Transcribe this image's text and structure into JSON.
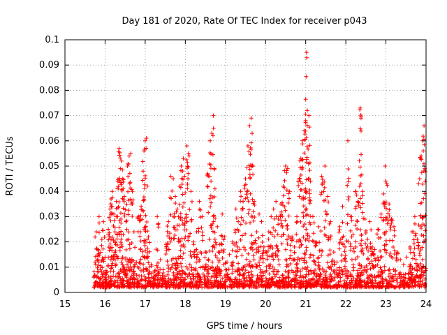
{
  "chart_data": {
    "type": "scatter",
    "title": "Day 181 of 2020, Rate Of TEC Index for receiver p043",
    "xlabel": "GPS time / hours",
    "ylabel": "ROTI / TECUs",
    "xlim": [
      15,
      24
    ],
    "ylim": [
      0,
      0.1
    ],
    "xticks": [
      "15",
      "16",
      "17",
      "18",
      "19",
      "20",
      "21",
      "22",
      "23",
      "24"
    ],
    "yticks": [
      "0",
      "0.01",
      "0.02",
      "0.03",
      "0.04",
      "0.05",
      "0.06",
      "0.07",
      "0.08",
      "0.09",
      "0.1"
    ],
    "grid": true,
    "marker": "+",
    "series": [
      {
        "name": "ROTI",
        "color": "#ff0000",
        "points": [
          [
            15.72,
            0.006
          ],
          [
            15.75,
            0.012
          ],
          [
            15.78,
            0.024
          ],
          [
            15.82,
            0.017
          ],
          [
            15.85,
            0.03
          ],
          [
            15.88,
            0.009
          ],
          [
            15.92,
            0.021
          ],
          [
            15.96,
            0.028
          ],
          [
            16.0,
            0.014
          ],
          [
            16.04,
            0.008
          ],
          [
            16.08,
            0.025
          ],
          [
            16.12,
            0.033
          ],
          [
            16.15,
            0.037
          ],
          [
            16.18,
            0.04
          ],
          [
            16.22,
            0.031
          ],
          [
            16.25,
            0.02
          ],
          [
            16.28,
            0.036
          ],
          [
            16.32,
            0.044
          ],
          [
            16.35,
            0.057
          ],
          [
            16.38,
            0.049
          ],
          [
            16.41,
            0.052
          ],
          [
            16.44,
            0.045
          ],
          [
            16.48,
            0.038
          ],
          [
            16.52,
            0.028
          ],
          [
            16.56,
            0.05
          ],
          [
            16.6,
            0.054
          ],
          [
            16.64,
            0.055
          ],
          [
            16.68,
            0.04
          ],
          [
            16.72,
            0.024
          ],
          [
            16.78,
            0.012
          ],
          [
            16.84,
            0.03
          ],
          [
            16.9,
            0.034
          ],
          [
            16.95,
            0.048
          ],
          [
            16.97,
            0.056
          ],
          [
            17.0,
            0.06
          ],
          [
            17.03,
            0.061
          ],
          [
            17.08,
            0.022
          ],
          [
            17.15,
            0.011
          ],
          [
            17.22,
            0.008
          ],
          [
            17.3,
            0.03
          ],
          [
            17.38,
            0.013
          ],
          [
            17.45,
            0.009
          ],
          [
            17.52,
            0.019
          ],
          [
            17.58,
            0.028
          ],
          [
            17.64,
            0.046
          ],
          [
            17.7,
            0.045
          ],
          [
            17.75,
            0.038
          ],
          [
            17.8,
            0.033
          ],
          [
            17.86,
            0.042
          ],
          [
            17.9,
            0.05
          ],
          [
            17.95,
            0.053
          ],
          [
            17.98,
            0.046
          ],
          [
            18.04,
            0.058
          ],
          [
            18.08,
            0.055
          ],
          [
            18.14,
            0.04
          ],
          [
            18.2,
            0.02
          ],
          [
            18.28,
            0.024
          ],
          [
            18.35,
            0.036
          ],
          [
            18.42,
            0.03
          ],
          [
            18.5,
            0.016
          ],
          [
            18.56,
            0.047
          ],
          [
            18.62,
            0.06
          ],
          [
            18.66,
            0.063
          ],
          [
            18.7,
            0.07
          ],
          [
            18.74,
            0.041
          ],
          [
            18.8,
            0.026
          ],
          [
            18.86,
            0.019
          ],
          [
            18.92,
            0.031
          ],
          [
            18.98,
            0.022
          ],
          [
            19.04,
            0.012
          ],
          [
            19.1,
            0.015
          ],
          [
            19.18,
            0.02
          ],
          [
            19.26,
            0.033
          ],
          [
            19.32,
            0.028
          ],
          [
            19.38,
            0.04
          ],
          [
            19.44,
            0.036
          ],
          [
            19.5,
            0.045
          ],
          [
            19.56,
            0.058
          ],
          [
            19.6,
            0.066
          ],
          [
            19.64,
            0.069
          ],
          [
            19.68,
            0.05
          ],
          [
            19.72,
            0.036
          ],
          [
            19.78,
            0.024
          ],
          [
            19.84,
            0.031
          ],
          [
            19.9,
            0.028
          ],
          [
            19.96,
            0.018
          ],
          [
            20.02,
            0.016
          ],
          [
            20.08,
            0.024
          ],
          [
            20.14,
            0.03
          ],
          [
            20.2,
            0.033
          ],
          [
            20.26,
            0.036
          ],
          [
            20.32,
            0.029
          ],
          [
            20.38,
            0.035
          ],
          [
            20.44,
            0.042
          ],
          [
            20.5,
            0.05
          ],
          [
            20.55,
            0.049
          ],
          [
            20.6,
            0.04
          ],
          [
            20.66,
            0.022
          ],
          [
            20.72,
            0.018
          ],
          [
            20.78,
            0.03
          ],
          [
            20.84,
            0.045
          ],
          [
            20.88,
            0.053
          ],
          [
            20.92,
            0.06
          ],
          [
            20.96,
            0.064
          ],
          [
            21.0,
            0.068
          ],
          [
            21.02,
            0.095
          ],
          [
            21.04,
            0.072
          ],
          [
            21.08,
            0.07
          ],
          [
            21.12,
            0.044
          ],
          [
            21.18,
            0.03
          ],
          [
            21.25,
            0.02
          ],
          [
            21.32,
            0.026
          ],
          [
            21.4,
            0.046
          ],
          [
            21.48,
            0.05
          ],
          [
            21.55,
            0.038
          ],
          [
            21.62,
            0.028
          ],
          [
            21.7,
            0.016
          ],
          [
            21.78,
            0.012
          ],
          [
            21.85,
            0.026
          ],
          [
            21.92,
            0.034
          ],
          [
            21.98,
            0.018
          ],
          [
            22.05,
            0.06
          ],
          [
            22.12,
            0.03
          ],
          [
            22.18,
            0.023
          ],
          [
            22.24,
            0.04
          ],
          [
            22.3,
            0.036
          ],
          [
            22.36,
            0.073
          ],
          [
            22.38,
            0.069
          ],
          [
            22.42,
            0.04
          ],
          [
            22.48,
            0.029
          ],
          [
            22.54,
            0.021
          ],
          [
            22.6,
            0.028
          ],
          [
            22.66,
            0.018
          ],
          [
            22.72,
            0.017
          ],
          [
            22.8,
            0.025
          ],
          [
            22.88,
            0.031
          ],
          [
            22.94,
            0.039
          ],
          [
            22.98,
            0.05
          ],
          [
            23.02,
            0.043
          ],
          [
            23.08,
            0.035
          ],
          [
            23.14,
            0.029
          ],
          [
            23.2,
            0.026
          ],
          [
            23.28,
            0.016
          ],
          [
            23.36,
            0.013
          ],
          [
            23.44,
            0.011
          ],
          [
            23.52,
            0.014
          ],
          [
            23.6,
            0.018
          ],
          [
            23.68,
            0.024
          ],
          [
            23.72,
            0.03
          ],
          [
            23.78,
            0.021
          ],
          [
            23.84,
            0.045
          ],
          [
            23.88,
            0.054
          ],
          [
            23.92,
            0.06
          ],
          [
            23.95,
            0.066
          ],
          [
            23.98,
            0.048
          ]
        ]
      }
    ],
    "baseline_band": {
      "x_range": [
        15.72,
        24.0
      ],
      "y_range": [
        0.002,
        0.012
      ],
      "count": 1500,
      "color": "#ff0000"
    }
  }
}
